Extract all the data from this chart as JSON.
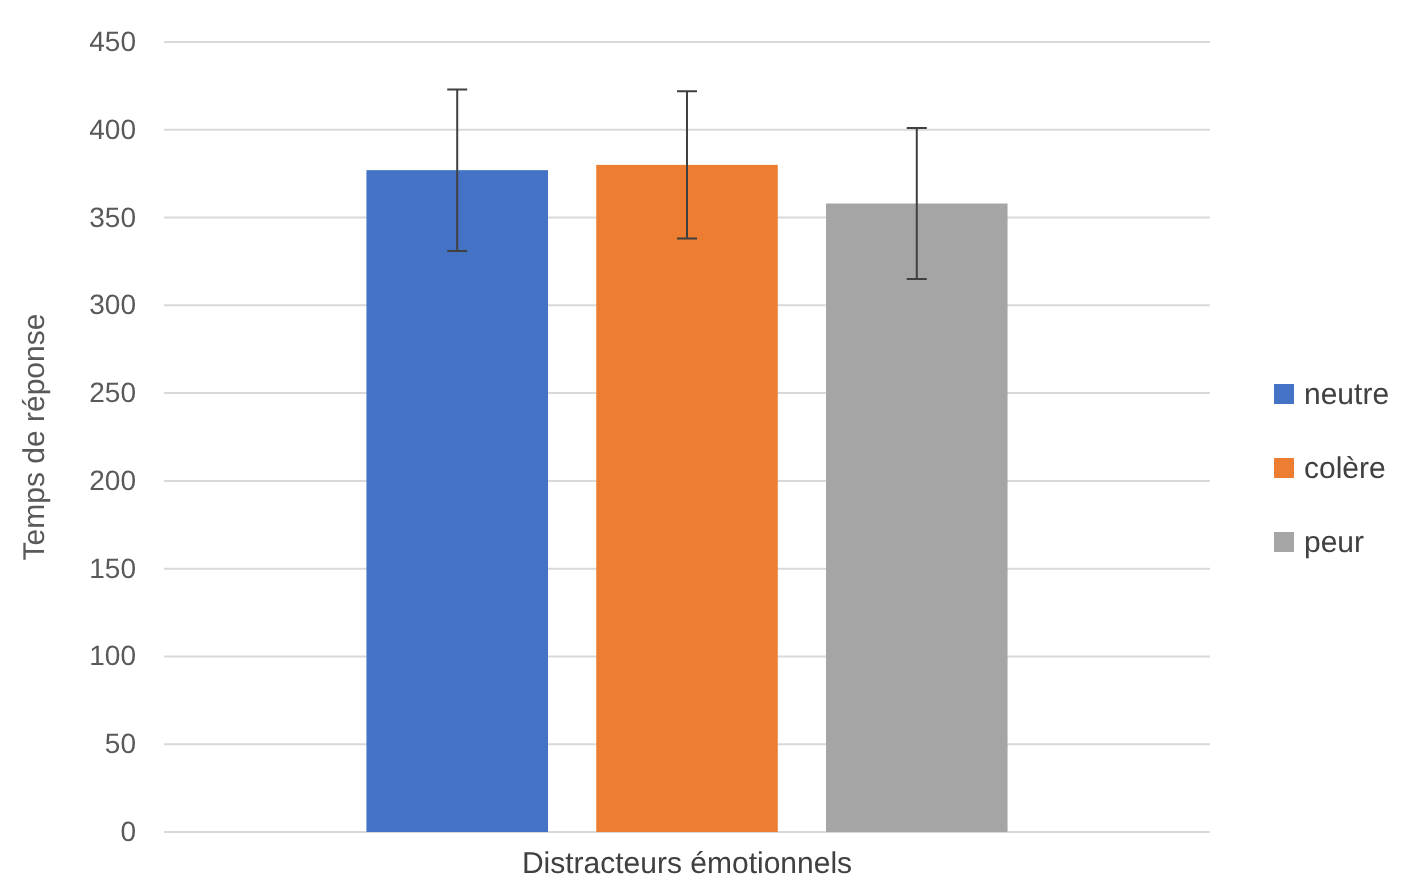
{
  "chart_data": {
    "type": "bar",
    "ylabel": "Temps de réponse",
    "categories": [
      "Distracteurs émotionnels"
    ],
    "series": [
      {
        "name": "neutre",
        "color": "#4472c4",
        "values": [
          377
        ],
        "errors": [
          46
        ]
      },
      {
        "name": "colère",
        "color": "#ed7d31",
        "values": [
          380
        ],
        "errors": [
          42
        ]
      },
      {
        "name": "peur",
        "color": "#a5a5a5",
        "values": [
          358
        ],
        "errors": [
          43
        ]
      }
    ],
    "ylim": [
      0,
      450
    ],
    "yticks": [
      0,
      50,
      100,
      150,
      200,
      250,
      300,
      350,
      400,
      450
    ],
    "grid": "y",
    "legend": "right"
  }
}
